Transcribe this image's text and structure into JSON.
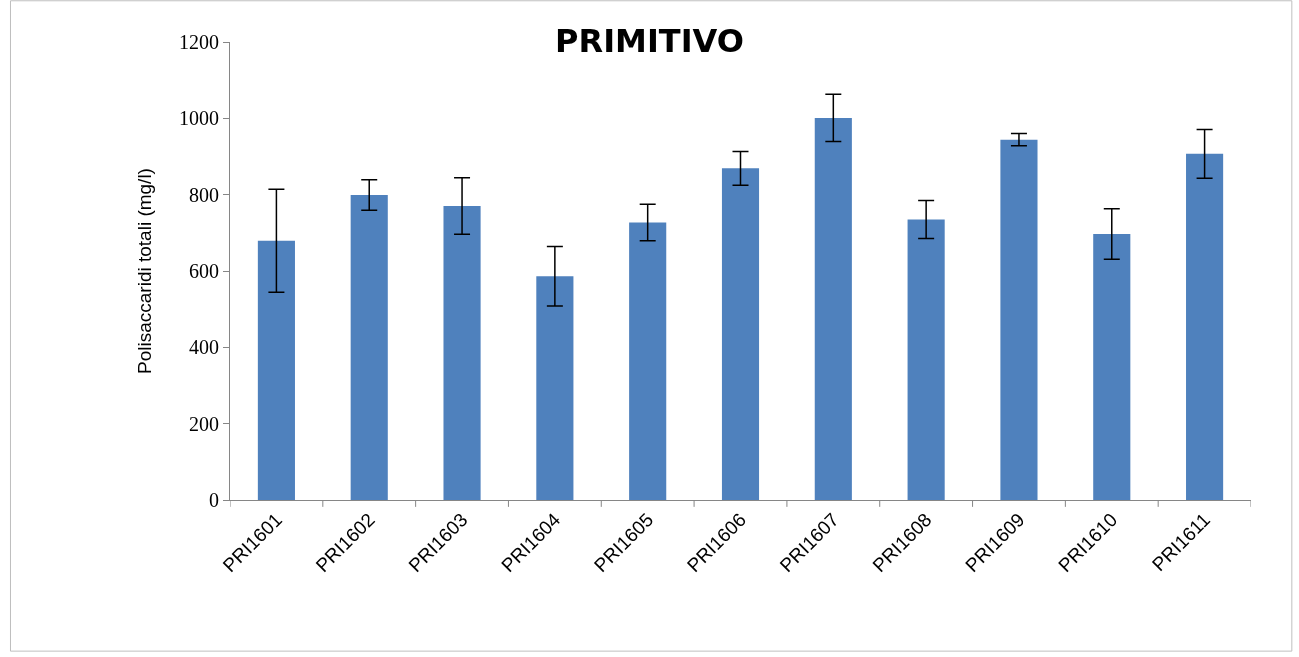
{
  "chart_data": {
    "type": "bar",
    "title": "PRIMITIVO",
    "ylabel": "Polisaccaridi totali (mg/l)",
    "categories": [
      "PRI1601",
      "PRI1602",
      "PRI1603",
      "PRI1604",
      "PRI1605",
      "PRI1606",
      "PRI1607",
      "PRI1608",
      "PRI1609",
      "PRI1610",
      "PRI1611"
    ],
    "values": [
      679,
      799,
      770,
      586,
      727,
      869,
      1001,
      735,
      944,
      697,
      907
    ],
    "errors": [
      135,
      40,
      74,
      78,
      48,
      44,
      62,
      50,
      16,
      66,
      64
    ],
    "color": "#4f81bd",
    "ylim": [
      0,
      1200
    ],
    "yticks": [
      0,
      200,
      400,
      600,
      800,
      1000,
      1200
    ]
  }
}
